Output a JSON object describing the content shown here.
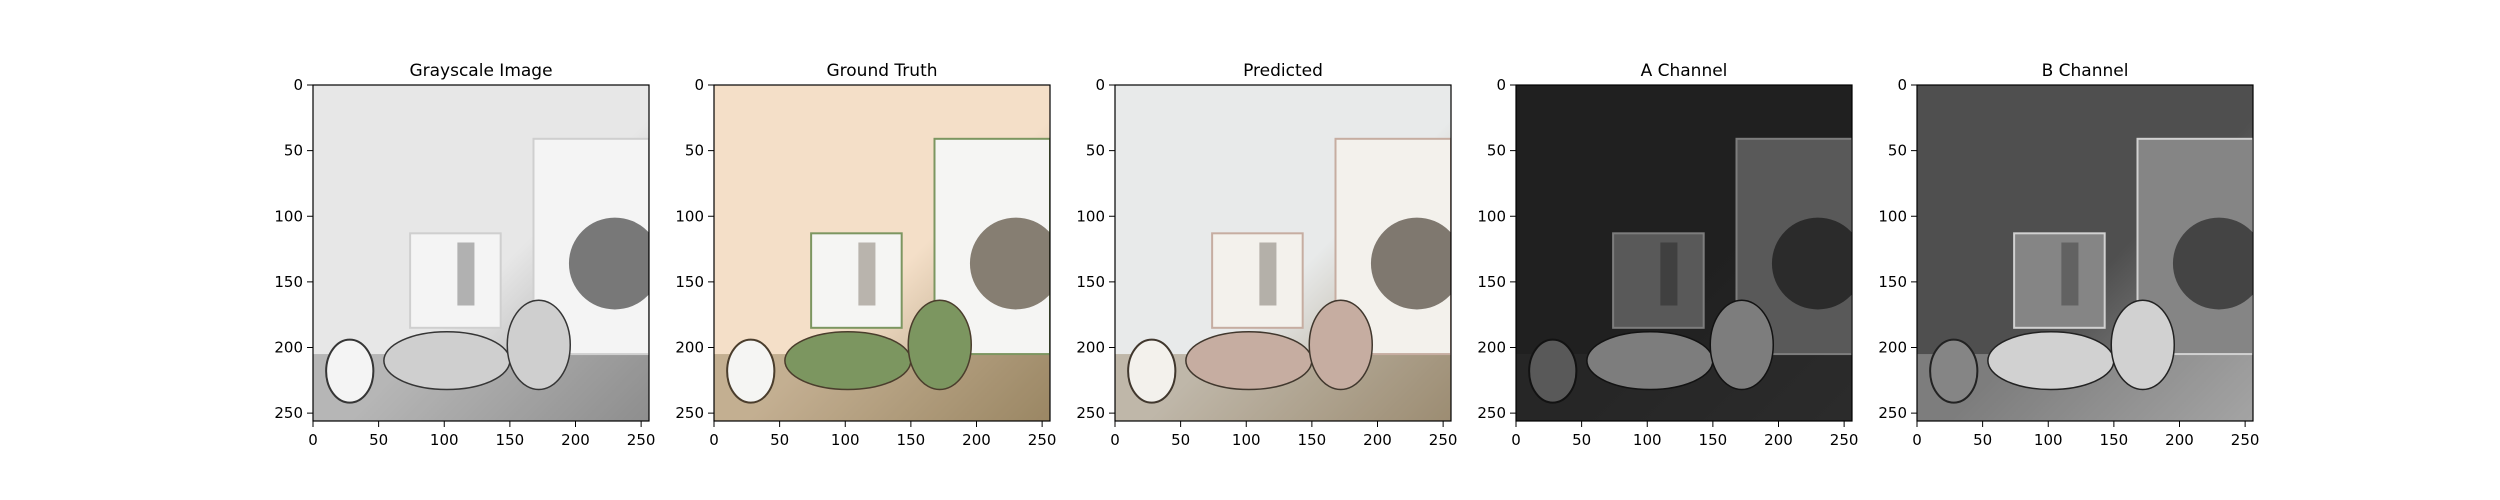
{
  "chart_data": [
    {
      "type": "image",
      "title": "Grayscale Image",
      "xlim": [
        0,
        256
      ],
      "ylim": [
        256,
        0
      ],
      "xticks": [
        0,
        50,
        100,
        150,
        200,
        250
      ],
      "yticks": [
        0,
        50,
        100,
        150,
        200,
        250
      ],
      "palette": {
        "wall": "#e7e7e7",
        "floor": "#8e8e8e",
        "object": "#f4f4f4",
        "shadow": "#353535",
        "accent": "#cfcfcf"
      }
    },
    {
      "type": "image",
      "title": "Ground Truth",
      "xlim": [
        0,
        256
      ],
      "ylim": [
        256,
        0
      ],
      "xticks": [
        0,
        50,
        100,
        150,
        200,
        250
      ],
      "yticks": [
        0,
        50,
        100,
        150,
        200,
        250
      ],
      "palette": {
        "wall": "#f4dfc8",
        "floor": "#9a8764",
        "object": "#f5f5f3",
        "shadow": "#4a3d2c",
        "accent": "#7c9660"
      }
    },
    {
      "type": "image",
      "title": "Predicted",
      "xlim": [
        0,
        256
      ],
      "ylim": [
        256,
        0
      ],
      "xticks": [
        0,
        50,
        100,
        150,
        200,
        250
      ],
      "yticks": [
        0,
        50,
        100,
        150,
        200,
        250
      ],
      "palette": {
        "wall": "#e8eaea",
        "floor": "#9c8d72",
        "object": "#f3f1ec",
        "shadow": "#40372d",
        "accent": "#c6ada1"
      }
    },
    {
      "type": "image",
      "title": "A Channel",
      "xlim": [
        0,
        256
      ],
      "ylim": [
        256,
        0
      ],
      "xticks": [
        0,
        50,
        100,
        150,
        200,
        250
      ],
      "yticks": [
        0,
        50,
        100,
        150,
        200,
        250
      ],
      "palette": {
        "wall": "#202020",
        "floor": "#2b2b2b",
        "object": "#595959",
        "shadow": "#121212",
        "accent": "#7d7d7d"
      }
    },
    {
      "type": "image",
      "title": "B Channel",
      "xlim": [
        0,
        256
      ],
      "ylim": [
        256,
        0
      ],
      "xticks": [
        0,
        50,
        100,
        150,
        200,
        250
      ],
      "yticks": [
        0,
        50,
        100,
        150,
        200,
        250
      ],
      "palette": {
        "wall": "#4f4f4f",
        "floor": "#a4a4a4",
        "object": "#858585",
        "shadow": "#222222",
        "accent": "#d1d1d1"
      }
    }
  ]
}
